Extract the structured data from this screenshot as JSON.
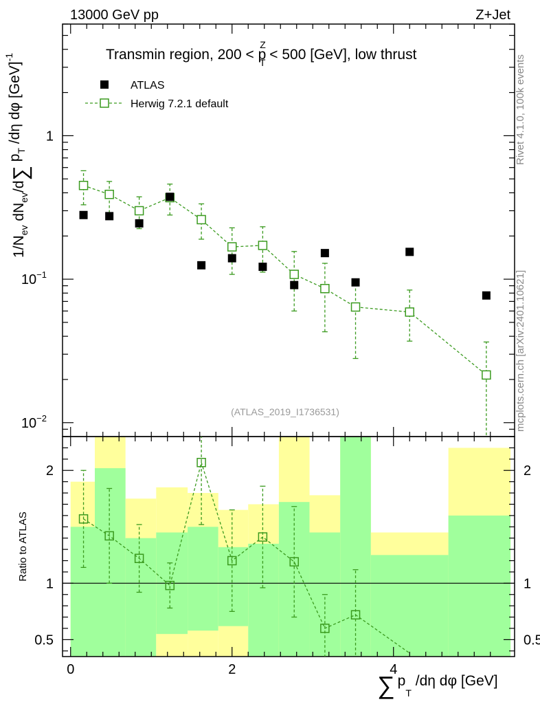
{
  "header": {
    "energy": "13000 GeV pp",
    "process": "Z+Jet"
  },
  "side_labels": {
    "rivet": "Rivet 4.1.0,  100k events",
    "url": "mcplots.cern.ch [arXiv:2401.10621]"
  },
  "colors": {
    "mc": "#3a9a1e",
    "data": "#000000",
    "band_inner": "#a0ff9c",
    "band_outer": "#ffff9c"
  },
  "chart_data": [
    {
      "type": "scatter",
      "panel": "main",
      "title": "Transmin region, 200 < p_T^Z < 500 [GeV], low thrust",
      "title_parts": {
        "pre": "Transmin region, 200 < p",
        "sup": "Z",
        "sub": "T",
        "post": " < 500 [GeV], low thrust"
      },
      "ylabel_text": "1/N_ev dN_ev/d Σ p_T /dη dφ [GeV]^-1",
      "ylabel_parts": {
        "a": "1/N",
        "a_sub": "ev",
        "b": " dN",
        "b_sub": "ev",
        "c": "/d",
        "sigma": "∑",
        "d": " p",
        "d_sub": "T",
        "e": " /dη dφ  [GeV]",
        "e_sup": "-1"
      },
      "yscale": "log",
      "ylim": [
        0.008,
        6.0
      ],
      "xlim": [
        -0.1,
        5.5
      ],
      "yticks": [
        {
          "value": 1,
          "label": "1"
        },
        {
          "value": 0.1,
          "label": "10",
          "exp": "−1"
        },
        {
          "value": 0.01,
          "label": "10",
          "exp": "−2"
        }
      ],
      "watermark": "(ATLAS_2019_I1736531)",
      "legend": [
        {
          "name": "ATLAS",
          "marker": "filled-square"
        },
        {
          "name": "Herwig 7.2.1 default",
          "marker": "open-square-dashed"
        }
      ],
      "legend_position": "top-left",
      "series": [
        {
          "name": "ATLAS",
          "x": [
            0.16,
            0.48,
            0.85,
            1.23,
            1.62,
            2.0,
            2.38,
            2.77,
            3.15,
            3.53,
            4.2,
            5.15
          ],
          "y": [
            0.28,
            0.275,
            0.245,
            0.375,
            0.125,
            0.14,
            0.122,
            0.091,
            0.152,
            0.095,
            0.155,
            0.077
          ],
          "yerr_low": [
            0.006,
            0.006,
            0.008,
            0.012,
            0.004,
            0.005,
            0.006,
            0.004,
            0.005,
            0.005,
            0.004,
            0.003
          ],
          "yerr_high": [
            0.006,
            0.006,
            0.008,
            0.012,
            0.004,
            0.005,
            0.006,
            0.004,
            0.005,
            0.005,
            0.004,
            0.003
          ]
        },
        {
          "name": "Herwig 7.2.1 default",
          "x": [
            0.16,
            0.48,
            0.85,
            1.23,
            1.62,
            2.0,
            2.38,
            2.77,
            3.15,
            3.53,
            4.2,
            5.15
          ],
          "y": [
            0.45,
            0.39,
            0.3,
            0.37,
            0.26,
            0.168,
            0.172,
            0.108,
            0.086,
            0.064,
            0.059,
            0.0215
          ],
          "yerr_low": [
            0.12,
            0.1,
            0.075,
            0.09,
            0.07,
            0.06,
            0.06,
            0.048,
            0.043,
            0.036,
            0.022,
            0.0145
          ],
          "yerr_high": [
            0.12,
            0.09,
            0.075,
            0.09,
            0.075,
            0.06,
            0.06,
            0.048,
            0.043,
            0.036,
            0.025,
            0.015
          ]
        }
      ]
    },
    {
      "type": "scatter",
      "panel": "ratio",
      "ylabel": "Ratio to ATLAS",
      "xlabel_parts": {
        "sigma": "∑",
        "p": "p",
        "p_sub": "T",
        "rest": " /dη dφ [GeV]"
      },
      "xlabel_text": "Σ p_T /dη dφ [GeV]",
      "xlim": [
        -0.1,
        5.5
      ],
      "ylim": [
        0.35,
        2.3
      ],
      "yticks": [
        {
          "value": 0.5,
          "label": "0.5"
        },
        {
          "value": 1,
          "label": "1"
        },
        {
          "value": 2,
          "label": "2"
        }
      ],
      "xticks": [
        {
          "value": 0,
          "label": "0"
        },
        {
          "value": 2,
          "label": "2"
        },
        {
          "value": 4,
          "label": "4"
        }
      ],
      "bands": [
        {
          "x0": 0.0,
          "x1": 0.3,
          "inner_lo": 0.35,
          "inner_hi": 1.5,
          "outer_lo": 0.35,
          "outer_hi": 1.9
        },
        {
          "x0": 0.3,
          "x1": 0.68,
          "inner_lo": 0.35,
          "inner_hi": 2.02,
          "outer_lo": 0.35,
          "outer_hi": 2.3
        },
        {
          "x0": 0.68,
          "x1": 1.06,
          "inner_lo": 0.35,
          "inner_hi": 1.4,
          "outer_lo": 0.4,
          "outer_hi": 1.75
        },
        {
          "x0": 1.06,
          "x1": 1.45,
          "inner_lo": 0.55,
          "inner_hi": 1.45,
          "outer_lo": 0.35,
          "outer_hi": 1.85
        },
        {
          "x0": 1.45,
          "x1": 1.83,
          "inner_lo": 0.58,
          "inner_hi": 1.5,
          "outer_lo": 0.35,
          "outer_hi": 1.8
        },
        {
          "x0": 1.83,
          "x1": 2.2,
          "inner_lo": 0.62,
          "inner_hi": 1.32,
          "outer_lo": 0.35,
          "outer_hi": 1.65
        },
        {
          "x0": 2.2,
          "x1": 2.58,
          "inner_lo": 0.35,
          "inner_hi": 1.35,
          "outer_lo": 0.35,
          "outer_hi": 1.7
        },
        {
          "x0": 2.58,
          "x1": 2.96,
          "inner_lo": 0.35,
          "inner_hi": 1.72,
          "outer_lo": 0.35,
          "outer_hi": 2.3
        },
        {
          "x0": 2.96,
          "x1": 3.34,
          "inner_lo": 0.35,
          "inner_hi": 1.45,
          "outer_lo": 0.35,
          "outer_hi": 1.78
        },
        {
          "x0": 3.34,
          "x1": 3.72,
          "inner_lo": 0.35,
          "inner_hi": 2.3,
          "outer_lo": 0.35,
          "outer_hi": 2.3
        },
        {
          "x0": 3.72,
          "x1": 4.68,
          "inner_lo": 0.35,
          "inner_hi": 1.25,
          "outer_lo": 0.45,
          "outer_hi": 1.45
        },
        {
          "x0": 4.68,
          "x1": 5.45,
          "inner_lo": 0.35,
          "inner_hi": 1.6,
          "outer_lo": 0.35,
          "outer_hi": 2.2
        }
      ],
      "series": [
        {
          "name": "Herwig 7.2.1 default / ATLAS",
          "x": [
            0.16,
            0.48,
            0.85,
            1.23,
            1.62,
            2.0,
            2.38,
            2.77,
            3.15,
            3.53
          ],
          "y": [
            1.57,
            1.42,
            1.22,
            0.98,
            2.07,
            1.2,
            1.41,
            1.19,
            0.6,
            0.72
          ],
          "yerr_low": [
            0.43,
            0.42,
            0.3,
            0.2,
            0.55,
            0.45,
            0.45,
            0.49,
            0.3,
            0.4
          ],
          "yerr_high": [
            0.43,
            0.42,
            0.3,
            0.2,
            0.55,
            0.45,
            0.45,
            0.49,
            0.3,
            0.4
          ],
          "trail_to": {
            "x": 4.2,
            "y": 0.38
          }
        }
      ]
    }
  ]
}
